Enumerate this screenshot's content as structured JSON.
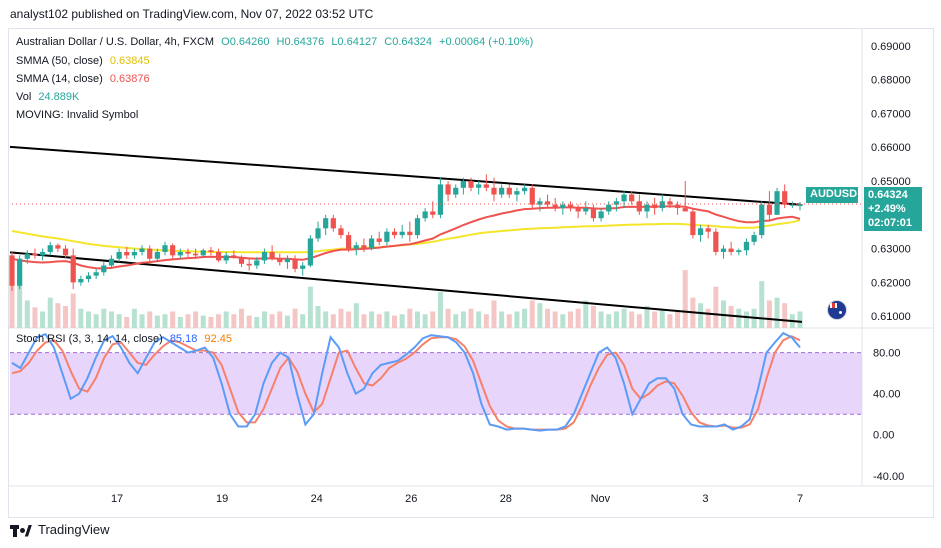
{
  "header": {
    "note": "analyst102 published on TradingView.com, Nov 07, 2022 03:52 UTC"
  },
  "footer": {
    "brand": "TradingView"
  },
  "legend": {
    "title": "Australian Dollar / U.S. Dollar, 4h, FXCM",
    "open": "O0.64260",
    "high": "H0.64376",
    "low": "L0.64127",
    "close": "C0.64324",
    "change": "+0.00064 (+0.10%)",
    "sma50_label": "SMMA (50, close)",
    "sma50_value": "0.63845",
    "sma14_label": "SMMA (14, close)",
    "sma14_value": "0.63876",
    "vol_label": "Vol",
    "vol_value": "24.889K",
    "moving": "MOVING: Invalid Symbol"
  },
  "rsi_legend": {
    "label": "Stoch RSI (3, 3, 14, 14, close)",
    "k_value": "85.18",
    "d_value": "92.45"
  },
  "price_tag": {
    "symbol": "AUDUSD",
    "price": "0.64324",
    "change": "+2.49%",
    "countdown": "02:07:01"
  },
  "colors": {
    "up": "#26a69a",
    "down": "#ef5350",
    "sma50": "#f5e52b",
    "sma14": "#ef5350",
    "k": "#5b9cf6",
    "d": "#f7806a",
    "band": "#e8d5fb",
    "trend": "#000000"
  },
  "chart_data": [
    {
      "type": "candlestick",
      "title": "Australian Dollar / U.S. Dollar, 4h, FXCM",
      "x_ticks": [
        "17",
        "19",
        "24",
        "26",
        "28",
        "Nov",
        "3",
        "7"
      ],
      "y_ticks": [
        "0.69000",
        "0.68000",
        "0.67000",
        "0.66000",
        "0.65000",
        "0.63000",
        "0.62000",
        "0.61000"
      ],
      "ylim": [
        0.6065,
        0.6947
      ],
      "grid": false,
      "candles": [
        [
          0.628,
          0.629,
          0.6175,
          0.619
        ],
        [
          0.619,
          0.628,
          0.618,
          0.627
        ],
        [
          0.627,
          0.6295,
          0.6255,
          0.6285
        ],
        [
          0.6285,
          0.63,
          0.627,
          0.628
        ],
        [
          0.628,
          0.63,
          0.6265,
          0.629
        ],
        [
          0.629,
          0.632,
          0.628,
          0.631
        ],
        [
          0.631,
          0.6315,
          0.629,
          0.63
        ],
        [
          0.63,
          0.631,
          0.627,
          0.628
        ],
        [
          0.628,
          0.63,
          0.618,
          0.62
        ],
        [
          0.62,
          0.622,
          0.619,
          0.621
        ],
        [
          0.621,
          0.623,
          0.62,
          0.622
        ],
        [
          0.622,
          0.624,
          0.621,
          0.623
        ],
        [
          0.623,
          0.626,
          0.622,
          0.625
        ],
        [
          0.625,
          0.628,
          0.624,
          0.627
        ],
        [
          0.627,
          0.63,
          0.626,
          0.629
        ],
        [
          0.629,
          0.6305,
          0.627,
          0.628
        ],
        [
          0.628,
          0.63,
          0.627,
          0.629
        ],
        [
          0.629,
          0.631,
          0.628,
          0.63
        ],
        [
          0.63,
          0.631,
          0.626,
          0.627
        ],
        [
          0.627,
          0.63,
          0.626,
          0.629
        ],
        [
          0.629,
          0.632,
          0.628,
          0.631
        ],
        [
          0.631,
          0.6315,
          0.627,
          0.628
        ],
        [
          0.628,
          0.63,
          0.627,
          0.629
        ],
        [
          0.629,
          0.63,
          0.6275,
          0.6285
        ],
        [
          0.6285,
          0.63,
          0.627,
          0.628
        ],
        [
          0.628,
          0.63,
          0.6275,
          0.6295
        ],
        [
          0.6295,
          0.6305,
          0.628,
          0.629
        ],
        [
          0.629,
          0.63,
          0.626,
          0.6265
        ],
        [
          0.6265,
          0.629,
          0.6255,
          0.628
        ],
        [
          0.628,
          0.6295,
          0.627,
          0.6275
        ],
        [
          0.6275,
          0.628,
          0.6245,
          0.6255
        ],
        [
          0.6255,
          0.627,
          0.6235,
          0.625
        ],
        [
          0.625,
          0.6275,
          0.624,
          0.6265
        ],
        [
          0.6265,
          0.63,
          0.6255,
          0.629
        ],
        [
          0.629,
          0.631,
          0.6265,
          0.627
        ],
        [
          0.627,
          0.6285,
          0.625,
          0.626
        ],
        [
          0.626,
          0.628,
          0.624,
          0.627
        ],
        [
          0.627,
          0.628,
          0.623,
          0.624
        ],
        [
          0.624,
          0.626,
          0.622,
          0.625
        ],
        [
          0.625,
          0.634,
          0.6245,
          0.633
        ],
        [
          0.633,
          0.638,
          0.632,
          0.636
        ],
        [
          0.636,
          0.64,
          0.634,
          0.639
        ],
        [
          0.639,
          0.64,
          0.635,
          0.636
        ],
        [
          0.636,
          0.637,
          0.633,
          0.634
        ],
        [
          0.634,
          0.635,
          0.629,
          0.63
        ],
        [
          0.63,
          0.632,
          0.628,
          0.631
        ],
        [
          0.631,
          0.633,
          0.629,
          0.63
        ],
        [
          0.63,
          0.634,
          0.6295,
          0.633
        ],
        [
          0.633,
          0.635,
          0.631,
          0.632
        ],
        [
          0.632,
          0.636,
          0.631,
          0.635
        ],
        [
          0.635,
          0.636,
          0.633,
          0.634
        ],
        [
          0.634,
          0.637,
          0.633,
          0.635
        ],
        [
          0.635,
          0.638,
          0.632,
          0.634
        ],
        [
          0.634,
          0.64,
          0.633,
          0.639
        ],
        [
          0.639,
          0.642,
          0.638,
          0.641
        ],
        [
          0.641,
          0.644,
          0.639,
          0.64
        ],
        [
          0.64,
          0.651,
          0.639,
          0.649
        ],
        [
          0.649,
          0.65,
          0.644,
          0.646
        ],
        [
          0.646,
          0.649,
          0.645,
          0.648
        ],
        [
          0.648,
          0.651,
          0.646,
          0.65
        ],
        [
          0.65,
          0.651,
          0.647,
          0.648
        ],
        [
          0.648,
          0.65,
          0.646,
          0.649
        ],
        [
          0.649,
          0.652,
          0.647,
          0.648
        ],
        [
          0.648,
          0.651,
          0.644,
          0.646
        ],
        [
          0.646,
          0.649,
          0.645,
          0.648
        ],
        [
          0.648,
          0.649,
          0.645,
          0.646
        ],
        [
          0.646,
          0.648,
          0.644,
          0.647
        ],
        [
          0.647,
          0.649,
          0.646,
          0.648
        ],
        [
          0.648,
          0.649,
          0.642,
          0.643
        ],
        [
          0.643,
          0.645,
          0.641,
          0.644
        ],
        [
          0.644,
          0.646,
          0.642,
          0.643
        ],
        [
          0.643,
          0.645,
          0.641,
          0.642
        ],
        [
          0.642,
          0.644,
          0.64,
          0.643
        ],
        [
          0.643,
          0.644,
          0.641,
          0.642
        ],
        [
          0.642,
          0.643,
          0.639,
          0.641
        ],
        [
          0.641,
          0.644,
          0.64,
          0.642
        ],
        [
          0.642,
          0.643,
          0.638,
          0.639
        ],
        [
          0.639,
          0.642,
          0.638,
          0.641
        ],
        [
          0.641,
          0.644,
          0.64,
          0.643
        ],
        [
          0.643,
          0.645,
          0.641,
          0.644
        ],
        [
          0.644,
          0.647,
          0.642,
          0.646
        ],
        [
          0.646,
          0.647,
          0.643,
          0.644
        ],
        [
          0.644,
          0.646,
          0.64,
          0.641
        ],
        [
          0.641,
          0.644,
          0.639,
          0.643
        ],
        [
          0.643,
          0.645,
          0.64,
          0.642
        ],
        [
          0.642,
          0.646,
          0.641,
          0.644
        ],
        [
          0.644,
          0.645,
          0.642,
          0.643
        ],
        [
          0.643,
          0.644,
          0.64,
          0.642
        ],
        [
          0.642,
          0.65,
          0.641,
          0.641
        ],
        [
          0.641,
          0.642,
          0.633,
          0.634
        ],
        [
          0.634,
          0.637,
          0.632,
          0.636
        ],
        [
          0.636,
          0.637,
          0.633,
          0.635
        ],
        [
          0.635,
          0.636,
          0.628,
          0.629
        ],
        [
          0.629,
          0.631,
          0.627,
          0.63
        ],
        [
          0.63,
          0.632,
          0.628,
          0.629
        ],
        [
          0.629,
          0.63,
          0.628,
          0.6295
        ],
        [
          0.6295,
          0.633,
          0.628,
          0.632
        ],
        [
          0.632,
          0.635,
          0.631,
          0.634
        ],
        [
          0.634,
          0.644,
          0.633,
          0.643
        ],
        [
          0.643,
          0.647,
          0.638,
          0.64
        ],
        [
          0.64,
          0.648,
          0.64,
          0.647
        ],
        [
          0.647,
          0.649,
          0.642,
          0.643
        ],
        [
          0.643,
          0.644,
          0.642,
          0.643
        ],
        [
          0.6426,
          0.6438,
          0.6413,
          0.6432
        ]
      ],
      "volume": [
        45,
        38,
        20,
        15,
        12,
        22,
        18,
        16,
        25,
        14,
        12,
        10,
        14,
        12,
        10,
        8,
        14,
        10,
        12,
        9,
        10,
        12,
        8,
        10,
        12,
        9,
        8,
        10,
        12,
        10,
        14,
        9,
        8,
        12,
        10,
        12,
        9,
        14,
        10,
        30,
        16,
        12,
        10,
        14,
        12,
        18,
        10,
        12,
        10,
        12,
        9,
        10,
        14,
        12,
        10,
        12,
        26,
        14,
        10,
        12,
        14,
        12,
        10,
        20,
        12,
        10,
        12,
        14,
        20,
        18,
        14,
        12,
        10,
        12,
        14,
        20,
        16,
        12,
        10,
        12,
        14,
        12,
        10,
        16,
        12,
        14,
        10,
        12,
        42,
        22,
        18,
        14,
        30,
        20,
        16,
        14,
        12,
        14,
        34,
        20,
        22,
        18,
        10,
        12
      ],
      "sma50": [
        0.6352,
        0.6348,
        0.6344,
        0.634,
        0.6336,
        0.6333,
        0.633,
        0.6326,
        0.6322,
        0.6318,
        0.6314,
        0.6311,
        0.6308,
        0.6306,
        0.6304,
        0.6302,
        0.63,
        0.6299,
        0.6297,
        0.6296,
        0.6295,
        0.6294,
        0.6293,
        0.6292,
        0.6291,
        0.6291,
        0.629,
        0.629,
        0.629,
        0.629,
        0.6289,
        0.6289,
        0.6289,
        0.6289,
        0.6289,
        0.6289,
        0.6289,
        0.6289,
        0.6289,
        0.629,
        0.6292,
        0.6295,
        0.6297,
        0.63,
        0.63,
        0.6301,
        0.6302,
        0.6303,
        0.6304,
        0.6306,
        0.6308,
        0.631,
        0.6312,
        0.6314,
        0.6317,
        0.632,
        0.6325,
        0.6329,
        0.6333,
        0.6337,
        0.6341,
        0.6345,
        0.6348,
        0.635,
        0.6352,
        0.6354,
        0.6356,
        0.6358,
        0.6359,
        0.636,
        0.6361,
        0.6362,
        0.6363,
        0.6364,
        0.6365,
        0.6366,
        0.6366,
        0.6367,
        0.6368,
        0.6369,
        0.637,
        0.6371,
        0.6371,
        0.6372,
        0.6372,
        0.6373,
        0.6373,
        0.6373,
        0.6372,
        0.637,
        0.6369,
        0.6368,
        0.6366,
        0.6364,
        0.6363,
        0.6362,
        0.6362,
        0.6362,
        0.6365,
        0.6368,
        0.6372,
        0.6375,
        0.6378,
        0.6384
      ],
      "sma14": [
        0.627,
        0.6265,
        0.6262,
        0.626,
        0.6259,
        0.626,
        0.6262,
        0.6263,
        0.6258,
        0.625,
        0.6245,
        0.6242,
        0.6241,
        0.6243,
        0.6247,
        0.625,
        0.6254,
        0.6258,
        0.626,
        0.6263,
        0.6266,
        0.6268,
        0.627,
        0.6272,
        0.6273,
        0.6275,
        0.6276,
        0.6275,
        0.6275,
        0.6275,
        0.6273,
        0.6271,
        0.627,
        0.6271,
        0.6271,
        0.627,
        0.627,
        0.6268,
        0.6267,
        0.6272,
        0.6279,
        0.6287,
        0.6293,
        0.6297,
        0.6297,
        0.6298,
        0.6299,
        0.6301,
        0.6303,
        0.6306,
        0.6308,
        0.6311,
        0.6313,
        0.6318,
        0.6324,
        0.633,
        0.6342,
        0.6351,
        0.636,
        0.637,
        0.6378,
        0.6386,
        0.6393,
        0.6398,
        0.6404,
        0.6408,
        0.6413,
        0.6417,
        0.6418,
        0.642,
        0.6421,
        0.6421,
        0.6422,
        0.6422,
        0.6421,
        0.6421,
        0.6419,
        0.6418,
        0.6419,
        0.642,
        0.6423,
        0.6424,
        0.6423,
        0.6424,
        0.6424,
        0.6425,
        0.6425,
        0.6425,
        0.6424,
        0.6418,
        0.6414,
        0.641,
        0.6401,
        0.6394,
        0.6387,
        0.6381,
        0.6378,
        0.6378,
        0.6382,
        0.6383,
        0.6389,
        0.6392,
        0.6394,
        0.6388
      ]
    },
    {
      "type": "line",
      "title": "Stoch RSI (3, 3, 14, 14, close)",
      "y_ticks": [
        "80.00",
        "40.00",
        "0.00",
        "-40.00"
      ],
      "ylim": [
        -48,
        104
      ],
      "band": [
        20,
        80
      ],
      "series": [
        {
          "name": "K",
          "values": [
            70,
            65,
            80,
            95,
            98,
            85,
            60,
            35,
            40,
            55,
            75,
            92,
            96,
            85,
            70,
            60,
            75,
            90,
            95,
            90,
            85,
            80,
            82,
            85,
            75,
            50,
            20,
            8,
            8,
            20,
            50,
            70,
            80,
            75,
            40,
            10,
            20,
            60,
            95,
            85,
            60,
            40,
            45,
            60,
            68,
            70,
            72,
            78,
            85,
            94,
            97,
            96,
            95,
            90,
            80,
            60,
            30,
            10,
            8,
            5,
            6,
            6,
            5,
            4,
            5,
            5,
            8,
            20,
            40,
            60,
            80,
            85,
            75,
            50,
            20,
            35,
            50,
            55,
            55,
            45,
            20,
            10,
            8,
            8,
            8,
            10,
            5,
            8,
            15,
            45,
            80,
            90,
            99,
            95,
            85
          ]
        },
        {
          "name": "D",
          "values": [
            60,
            62,
            70,
            82,
            90,
            92,
            82,
            62,
            45,
            42,
            55,
            75,
            88,
            90,
            80,
            70,
            68,
            78,
            86,
            92,
            90,
            86,
            82,
            82,
            80,
            68,
            45,
            22,
            12,
            12,
            25,
            45,
            65,
            75,
            62,
            40,
            22,
            30,
            55,
            80,
            82,
            65,
            50,
            48,
            55,
            65,
            70,
            74,
            80,
            88,
            94,
            95,
            95,
            93,
            86,
            72,
            50,
            28,
            14,
            8,
            6,
            6,
            5,
            5,
            5,
            5,
            6,
            12,
            28,
            48,
            65,
            78,
            80,
            68,
            45,
            35,
            40,
            48,
            52,
            50,
            38,
            22,
            12,
            9,
            8,
            9,
            7,
            7,
            10,
            25,
            55,
            80,
            92,
            96,
            92
          ]
        }
      ]
    }
  ]
}
